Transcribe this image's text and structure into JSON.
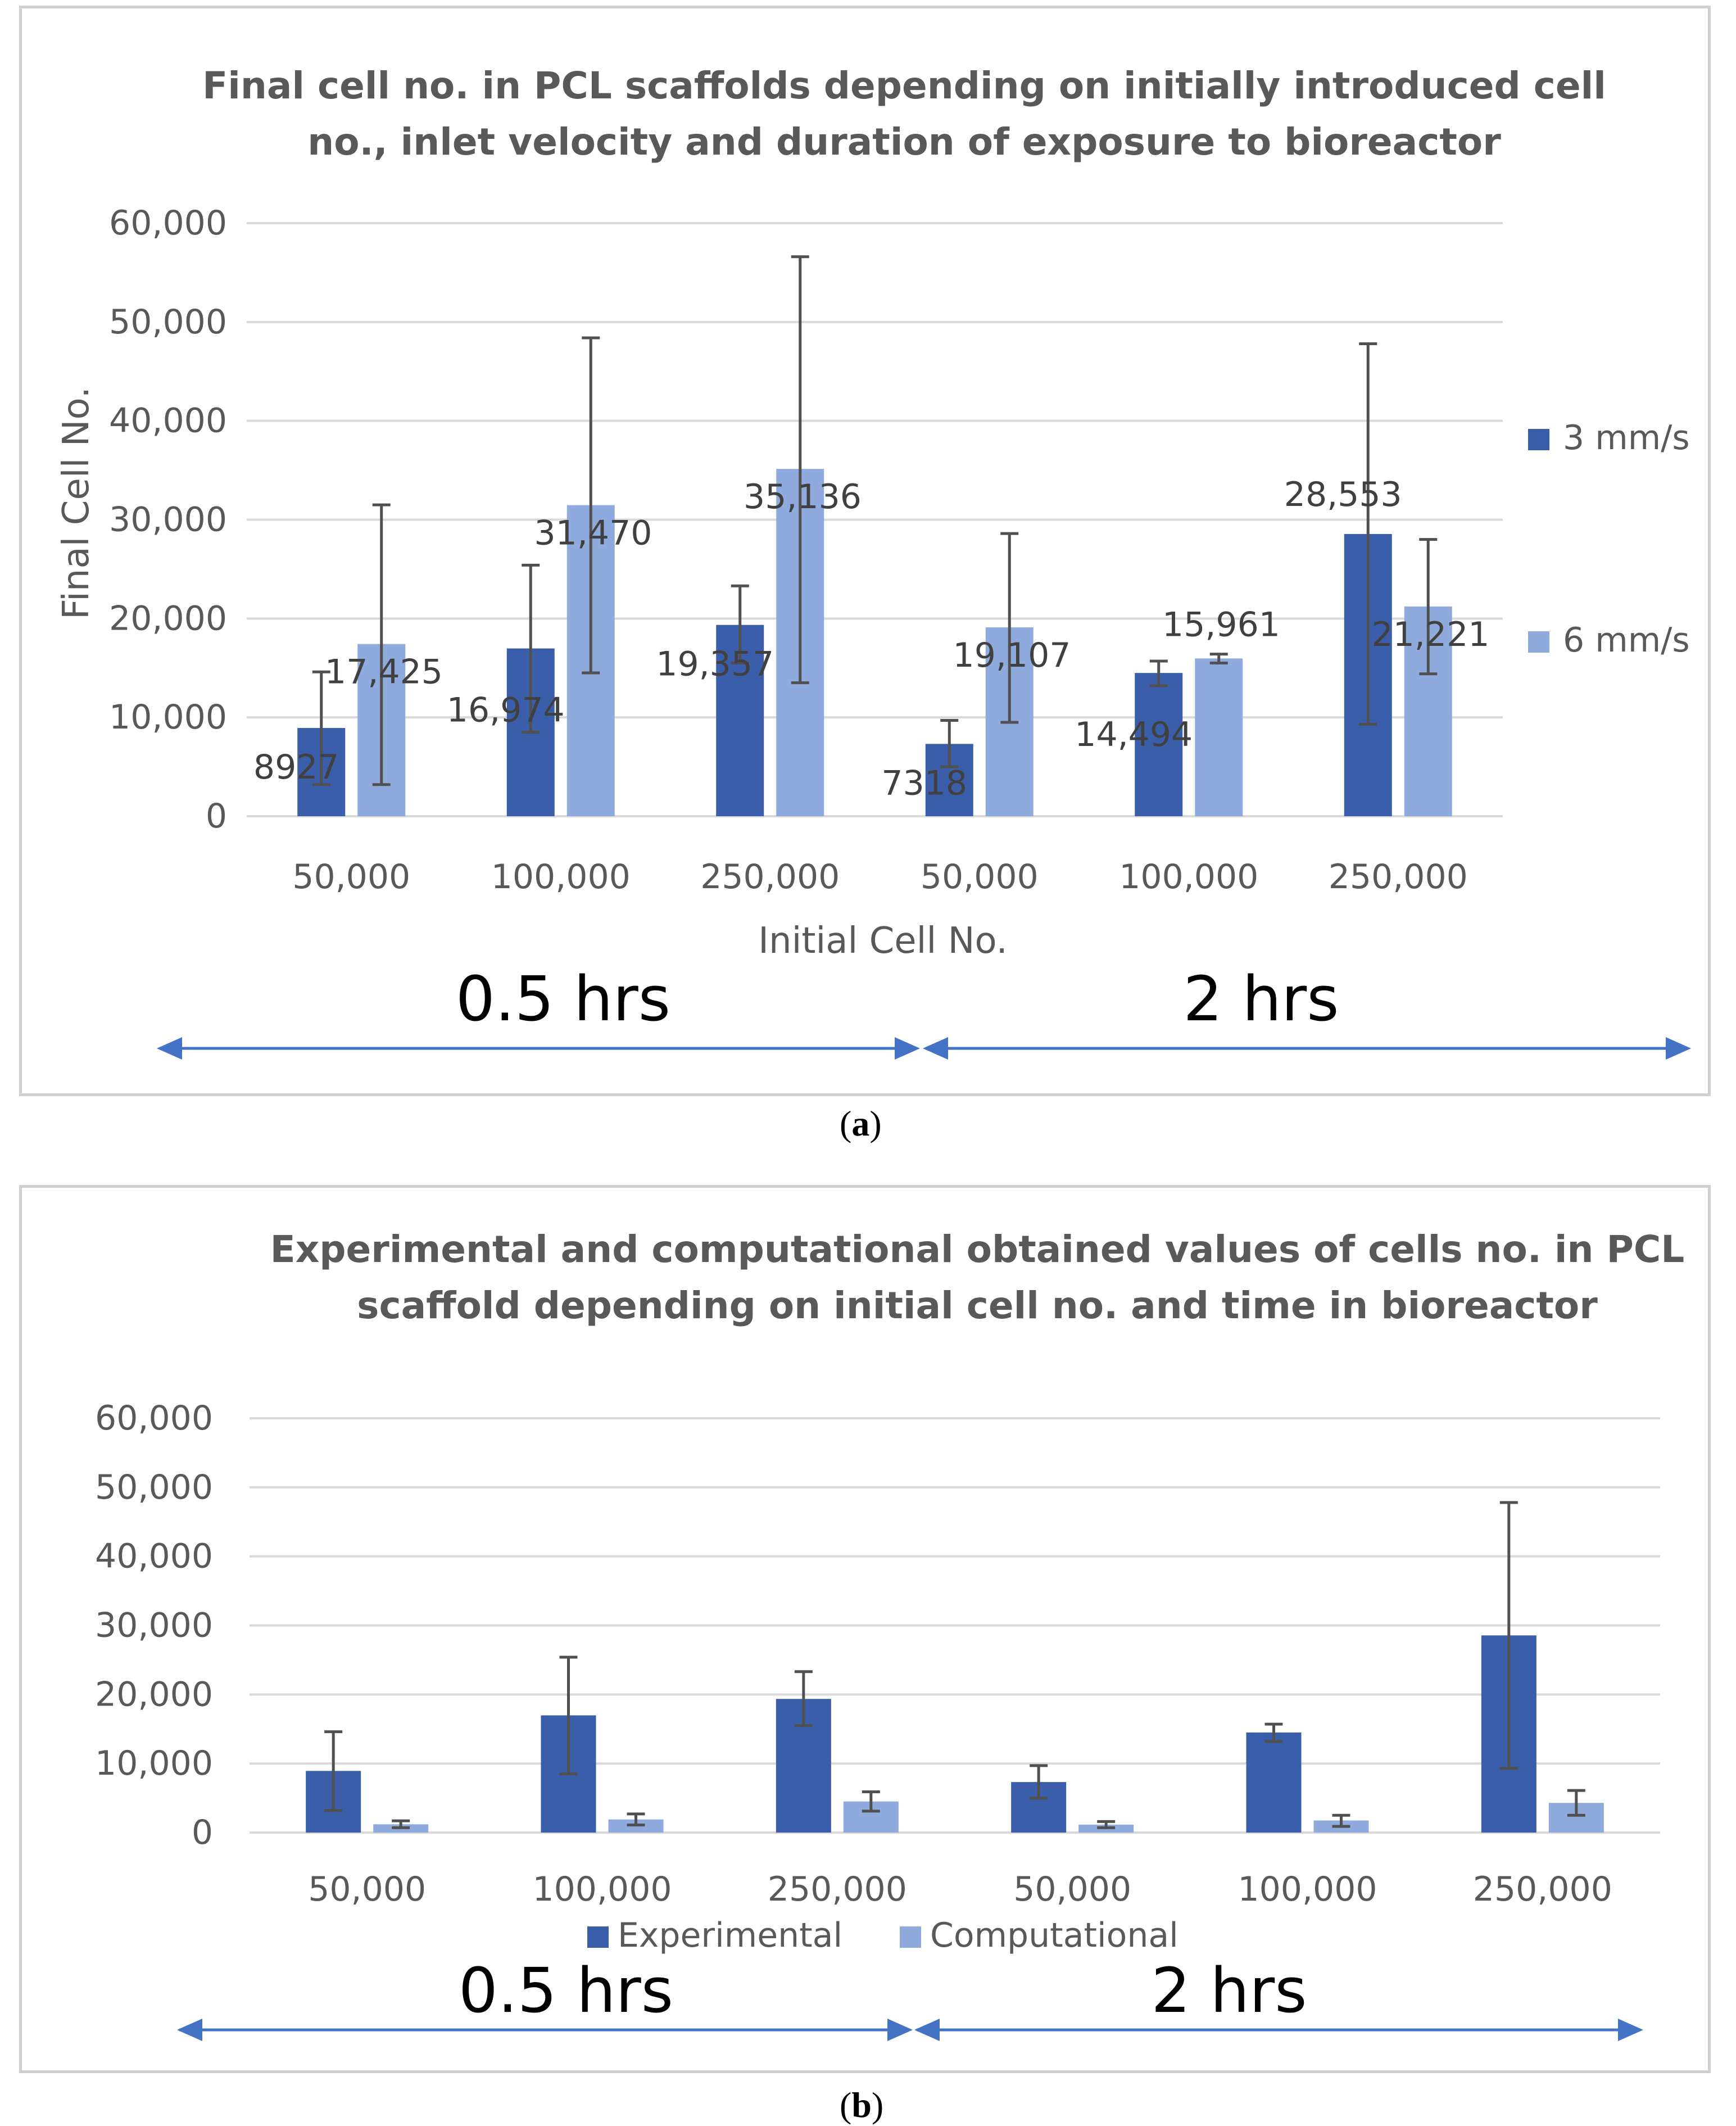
{
  "chart_data": [
    {
      "type": "bar",
      "title_lines": [
        "Final cell no. in PCL scaffolds depending on initially introduced cell",
        "no., inlet velocity and duration of exposure to bioreactor"
      ],
      "xlabel": "Initial Cell No.",
      "ylabel": "Final Cell No.",
      "ylim": [
        0,
        60000
      ],
      "yticks": [
        "0",
        "10,000",
        "20,000",
        "30,000",
        "40,000",
        "50,000",
        "60,000"
      ],
      "categories": [
        "50,000",
        "100,000",
        "250,000",
        "50,000",
        "100,000",
        "250,000"
      ],
      "groups": [
        "0.5 hrs",
        "2 hrs"
      ],
      "legend_position": "right",
      "series": [
        {
          "name": "3 mm/s",
          "color": "#3a5ea9",
          "values": [
            8927,
            16974,
            19357,
            7318,
            14494,
            28553
          ],
          "labels": [
            "8927",
            "16,974",
            "19,357",
            "7318",
            "14,494",
            "28,553"
          ],
          "err_low": [
            3200,
            8500,
            15500,
            5000,
            13200,
            9300
          ],
          "err_high": [
            14600,
            25400,
            23300,
            9700,
            15700,
            47800
          ]
        },
        {
          "name": "6 mm/s",
          "color": "#8faadc",
          "values": [
            17425,
            31470,
            35136,
            19107,
            15961,
            21221
          ],
          "labels": [
            "17,425",
            "31,470",
            "35,136",
            "19,107",
            "15,961",
            "21,221"
          ],
          "err_low": [
            3200,
            14500,
            13500,
            9500,
            15500,
            14400
          ],
          "err_high": [
            31500,
            48400,
            56600,
            28600,
            16400,
            28000
          ]
        }
      ]
    },
    {
      "type": "bar",
      "title_lines": [
        "Experimental and computational obtained values of cells no. in PCL",
        "scaffold depending on initial cell no. and time in bioreactor"
      ],
      "xlabel": "",
      "ylabel": "",
      "ylim": [
        0,
        60000
      ],
      "yticks": [
        "0",
        "10,000",
        "20,000",
        "30,000",
        "40,000",
        "50,000",
        "60,000"
      ],
      "categories": [
        "50,000",
        "100,000",
        "250,000",
        "50,000",
        "100,000",
        "250,000"
      ],
      "groups": [
        "0.5 hrs",
        "2 hrs"
      ],
      "legend_position": "bottom",
      "series": [
        {
          "name": "Experimental",
          "color": "#3a5ea9",
          "values": [
            8927,
            16974,
            19357,
            7318,
            14494,
            28553
          ],
          "err_low": [
            3200,
            8500,
            15500,
            5000,
            13200,
            9300
          ],
          "err_high": [
            14600,
            25400,
            23300,
            9700,
            15700,
            47800
          ]
        },
        {
          "name": "Computational",
          "color": "#8faadc",
          "values": [
            1200,
            1900,
            4500,
            1150,
            1750,
            4300
          ],
          "err_low": [
            700,
            1100,
            3100,
            700,
            900,
            2500
          ],
          "err_high": [
            1700,
            2700,
            5900,
            1600,
            2500,
            6100
          ]
        }
      ]
    }
  ],
  "captions": [
    {
      "open": "(",
      "letter": "a",
      "close": ")"
    },
    {
      "open": "(",
      "letter": "b",
      "close": ")"
    }
  ]
}
